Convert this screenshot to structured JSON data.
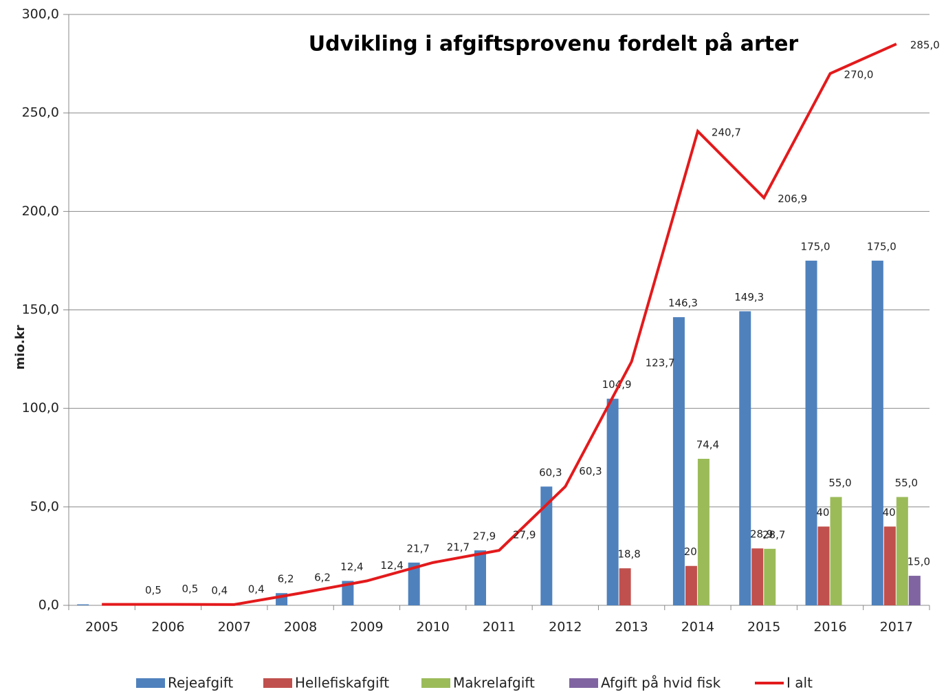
{
  "chart_data": {
    "type": "bar",
    "title": "Udvikling i afgiftsprovenu fordelt på arter",
    "y_label": "mio.kr",
    "categories": [
      "2005",
      "2006",
      "2007",
      "2008",
      "2009",
      "2010",
      "2011",
      "2012",
      "2013",
      "2014",
      "2015",
      "2016",
      "2017"
    ],
    "ylim": [
      0,
      300
    ],
    "yticks": [
      {
        "value": 0,
        "label": "0,0"
      },
      {
        "value": 50,
        "label": "50,0"
      },
      {
        "value": 100,
        "label": "100,0"
      },
      {
        "value": 150,
        "label": "150,0"
      },
      {
        "value": 200,
        "label": "200,0"
      },
      {
        "value": 250,
        "label": "250,0"
      },
      {
        "value": 300,
        "label": "300,0"
      }
    ],
    "grid": true,
    "legend": "bottom",
    "series": [
      {
        "name": "Rejeafgift",
        "color": "#4f81bd",
        "values": [
          0.5,
          0.5,
          0.4,
          6.2,
          12.4,
          21.7,
          27.9,
          60.3,
          104.9,
          146.3,
          149.3,
          175,
          175
        ],
        "value_labels": [
          null,
          "0,5",
          "0,4",
          "6,2",
          "12,4",
          "21,7",
          "27,9",
          "60,3",
          "104,9",
          "146,3",
          "149,3",
          "175,0",
          "175,0"
        ]
      },
      {
        "name": "Hellefiskafgift",
        "color": "#c0504d",
        "values": [
          null,
          null,
          null,
          null,
          null,
          null,
          null,
          null,
          18.8,
          20,
          28.9,
          40,
          40
        ],
        "value_labels": [
          null,
          null,
          null,
          null,
          null,
          null,
          null,
          null,
          "18,8",
          "20,0",
          "28,9",
          "40,0",
          "40,0"
        ]
      },
      {
        "name": "Makrelafgift",
        "color": "#9bbb59",
        "values": [
          null,
          null,
          null,
          null,
          null,
          null,
          null,
          null,
          null,
          74.4,
          28.7,
          55,
          55
        ],
        "value_labels": [
          null,
          null,
          null,
          null,
          null,
          null,
          null,
          null,
          null,
          "74,4",
          "28,7",
          "55,0",
          "55,0"
        ]
      },
      {
        "name": "Afgift på hvid fisk",
        "color": "#8064a2",
        "values": [
          null,
          null,
          null,
          null,
          null,
          null,
          null,
          null,
          null,
          null,
          null,
          null,
          15
        ],
        "value_labels": [
          null,
          null,
          null,
          null,
          null,
          null,
          null,
          null,
          null,
          null,
          null,
          null,
          "15,0"
        ]
      },
      {
        "name": "I alt",
        "type": "line",
        "color": "#e31a1c",
        "values": [
          0.5,
          0.5,
          0.4,
          6.2,
          12.4,
          21.7,
          27.9,
          60.3,
          123.7,
          240.7,
          206.9,
          270,
          285
        ],
        "value_labels": [
          null,
          "0,5",
          "0,4",
          "6,2",
          "12,4",
          "21,7",
          "27,9",
          "60,3",
          "123,7",
          "240,7",
          "206,9",
          "270,0",
          "285,0"
        ]
      }
    ]
  }
}
